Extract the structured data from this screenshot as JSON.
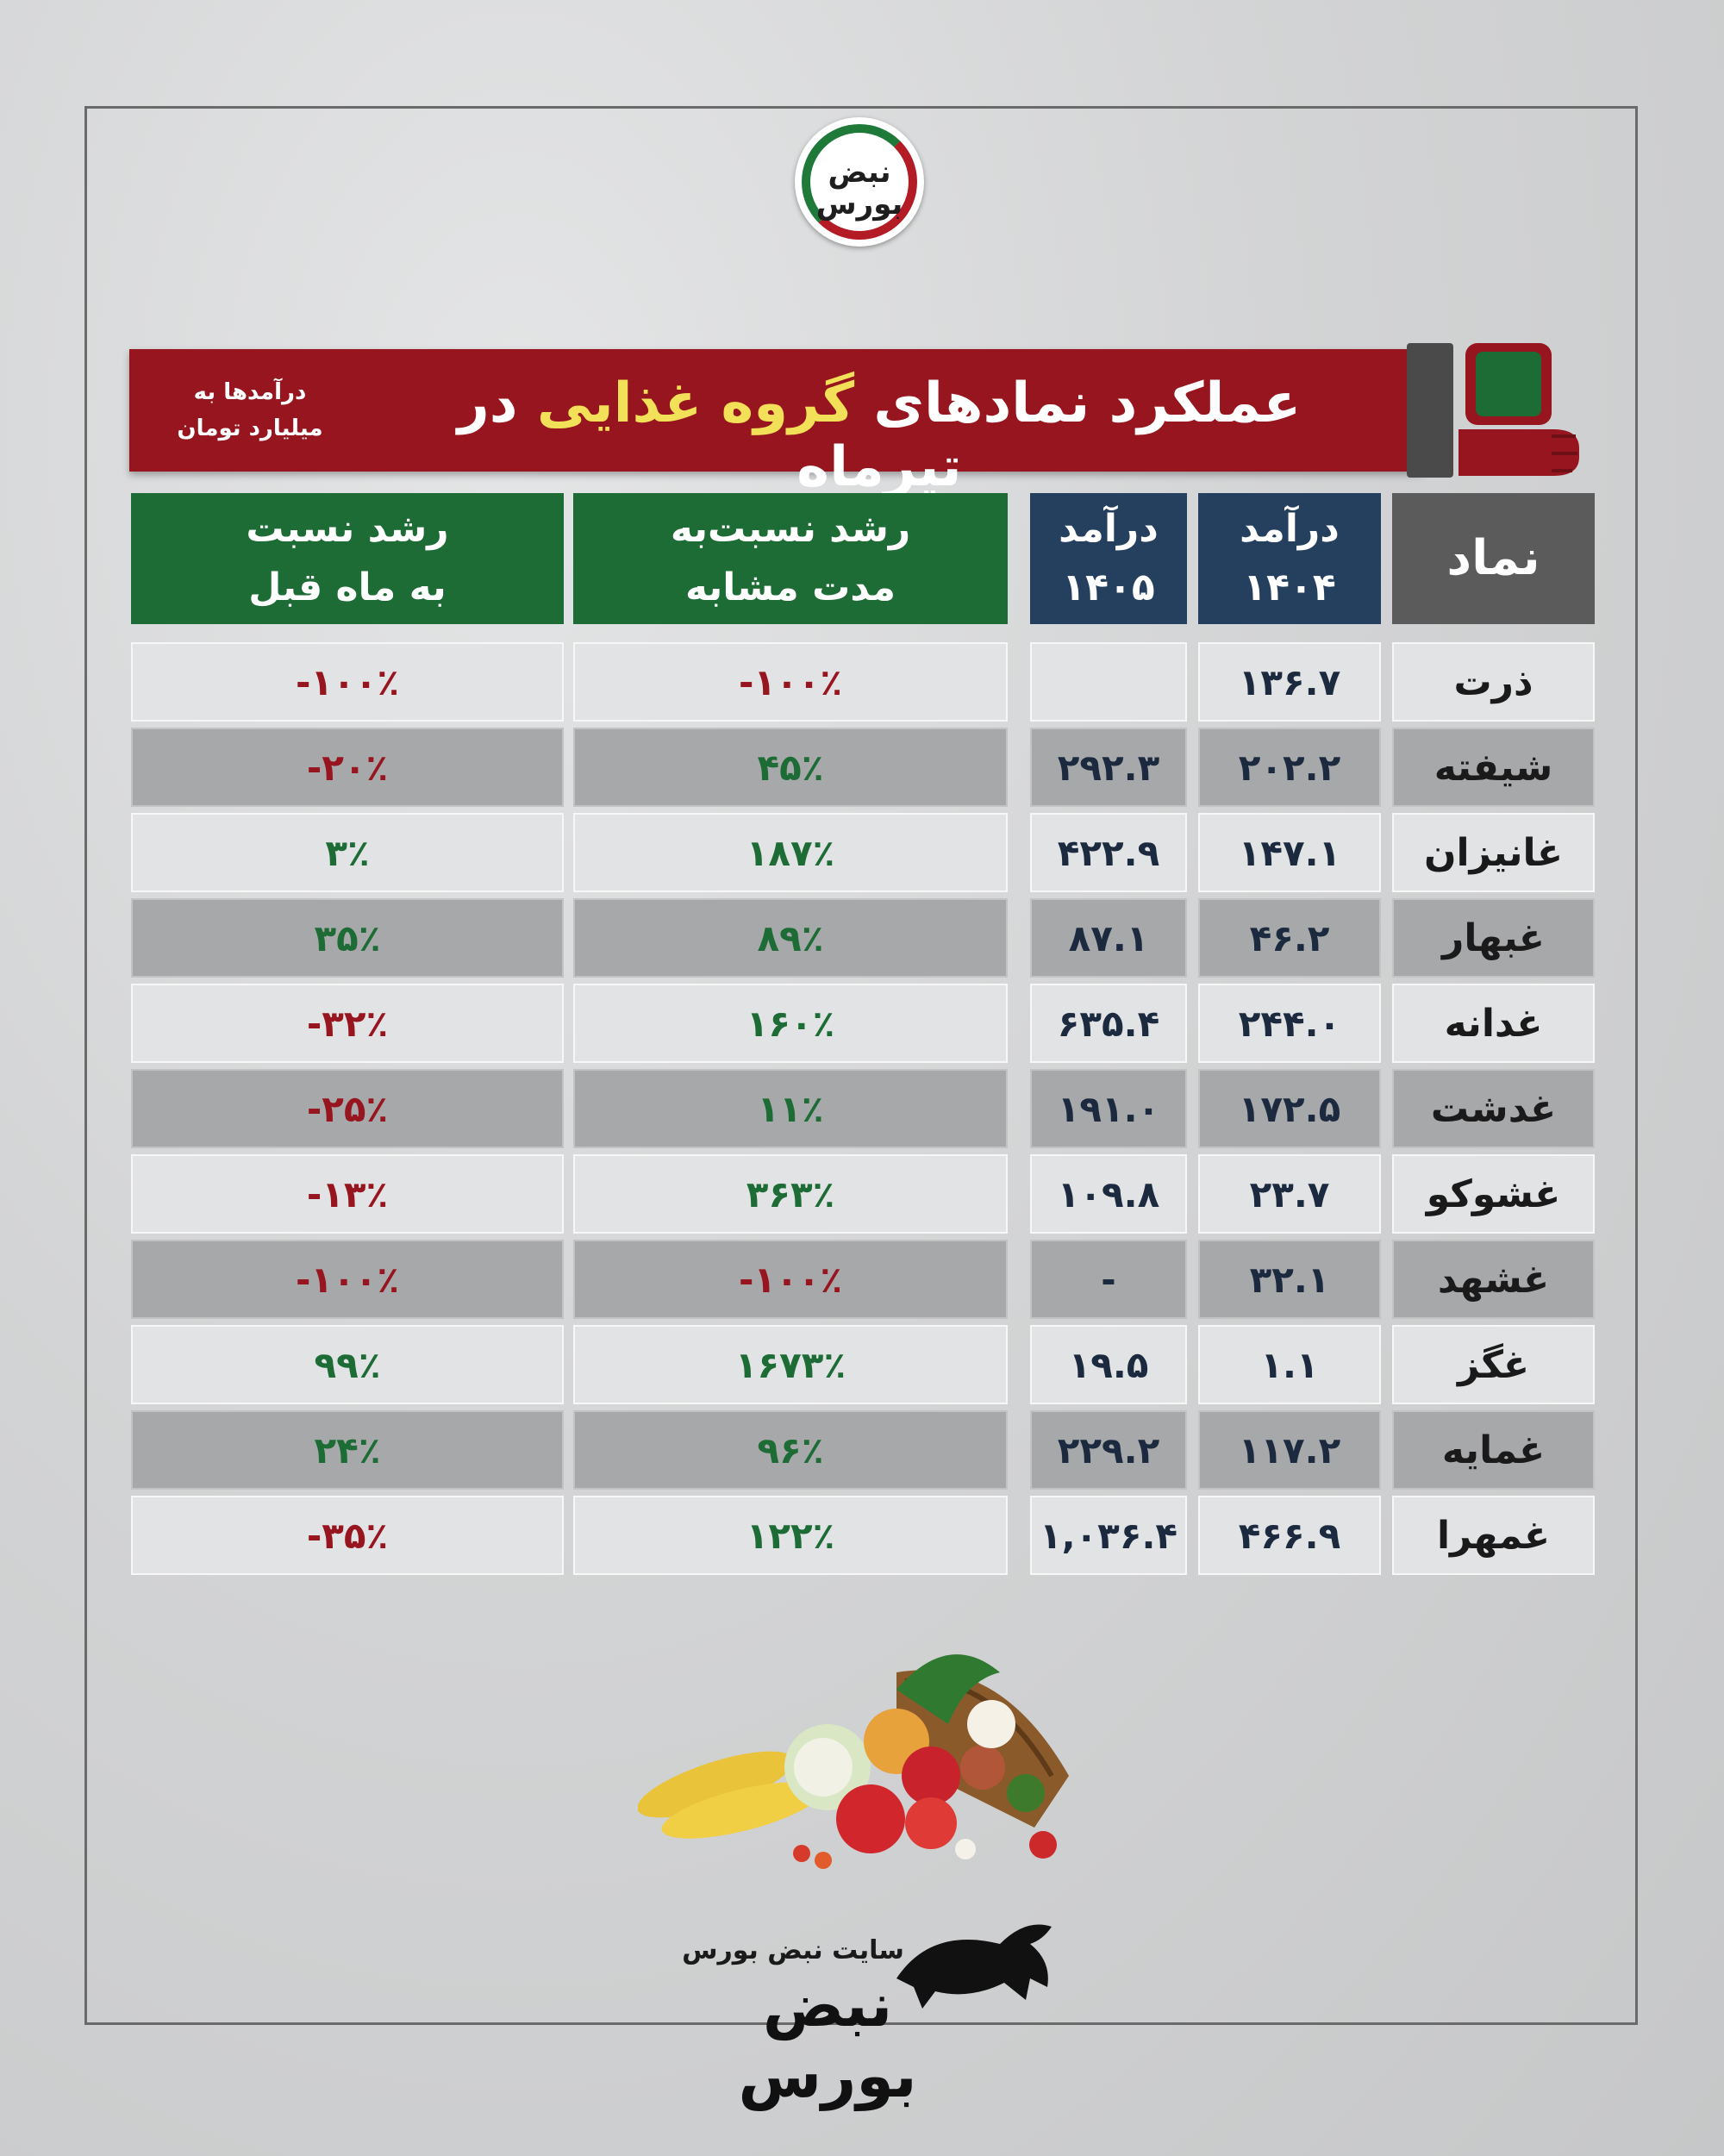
{
  "brand": {
    "logo_text": "نبض بورس",
    "site_label": "سایت نبض بورس",
    "footer_logo": "نبض بورس"
  },
  "banner": {
    "title_part1": "عملکرد نمادهای",
    "title_highlight": "گروه غذایی",
    "title_part2": "در تیرماه",
    "note_line1": "درآمدها به",
    "note_line2": "میلیارد تومان",
    "colors": {
      "banner": "#96151e",
      "highlight": "#f2e058"
    }
  },
  "table": {
    "headers": {
      "symbol": "نماد",
      "rev1404_line1": "درآمد",
      "rev1404_line2": "۱۴۰۴",
      "rev1405_line1": "درآمد",
      "rev1405_line2": "۱۴۰۵",
      "growth_same_line1": "رشد نسبت‌به",
      "growth_same_line2": "مدت مشابه",
      "growth_prev_line1": "رشد نسبت",
      "growth_prev_line2": "به ماه قبل"
    },
    "rows": [
      {
        "symbol": "ذرت",
        "rev1404": "۱۳۶.۷",
        "rev1405": "",
        "growth_same": "-۱۰۰٪",
        "same_sign": "neg",
        "growth_prev": "-۱۰۰٪",
        "prev_sign": "neg"
      },
      {
        "symbol": "شیفته",
        "rev1404": "۲۰۲.۲",
        "rev1405": "۲۹۲.۳",
        "growth_same": "۴۵٪",
        "same_sign": "pos",
        "growth_prev": "-۲۰٪",
        "prev_sign": "neg"
      },
      {
        "symbol": "غانیزان",
        "rev1404": "۱۴۷.۱",
        "rev1405": "۴۲۲.۹",
        "growth_same": "۱۸۷٪",
        "same_sign": "pos",
        "growth_prev": "۳٪",
        "prev_sign": "pos"
      },
      {
        "symbol": "غبهار",
        "rev1404": "۴۶.۲",
        "rev1405": "۸۷.۱",
        "growth_same": "۸۹٪",
        "same_sign": "pos",
        "growth_prev": "۳۵٪",
        "prev_sign": "pos"
      },
      {
        "symbol": "غدانه",
        "rev1404": "۲۴۴.۰",
        "rev1405": "۶۳۵.۴",
        "growth_same": "۱۶۰٪",
        "same_sign": "pos",
        "growth_prev": "-۳۲٪",
        "prev_sign": "neg"
      },
      {
        "symbol": "غدشت",
        "rev1404": "۱۷۲.۵",
        "rev1405": "۱۹۱.۰",
        "growth_same": "۱۱٪",
        "same_sign": "pos",
        "growth_prev": "-۲۵٪",
        "prev_sign": "neg"
      },
      {
        "symbol": "غشوکو",
        "rev1404": "۲۳.۷",
        "rev1405": "۱۰۹.۸",
        "growth_same": "۳۶۳٪",
        "same_sign": "pos",
        "growth_prev": "-۱۳٪",
        "prev_sign": "neg"
      },
      {
        "symbol": "غشهد",
        "rev1404": "۳۲.۱",
        "rev1405": "-",
        "growth_same": "-۱۰۰٪",
        "same_sign": "neg",
        "growth_prev": "-۱۰۰٪",
        "prev_sign": "neg"
      },
      {
        "symbol": "غگز",
        "rev1404": "۱.۱",
        "rev1405": "۱۹.۵",
        "growth_same": "۱۶۷۳٪",
        "same_sign": "pos",
        "growth_prev": "۹۹٪",
        "prev_sign": "pos"
      },
      {
        "symbol": "غمایه",
        "rev1404": "۱۱۷.۲",
        "rev1405": "۲۲۹.۲",
        "growth_same": "۹۶٪",
        "same_sign": "pos",
        "growth_prev": "۲۴٪",
        "prev_sign": "pos"
      },
      {
        "symbol": "غمهرا",
        "rev1404": "۴۶۶.۹",
        "rev1405": "۱,۰۳۶.۴",
        "growth_same": "۱۲۲٪",
        "same_sign": "pos",
        "growth_prev": "-۳۵٪",
        "prev_sign": "neg"
      }
    ],
    "colors": {
      "positive": "#1d6b35",
      "negative": "#97151f",
      "header_green": "#1d6b35",
      "header_blue": "#25405e",
      "header_gray": "#5b5b5b"
    }
  },
  "icons": [
    "fist-scale-icon",
    "bull-logo-icon",
    "vegetable-basket-icon"
  ]
}
